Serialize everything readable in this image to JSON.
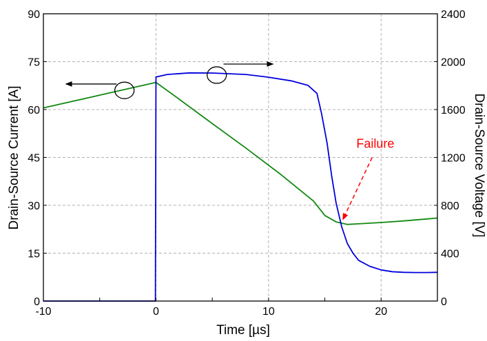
{
  "chart_data": {
    "type": "line",
    "xlabel": "Time [µs]",
    "ylabel_left": "Drain-Source Current [A]",
    "ylabel_right": "Drain-Source Voltage [V]",
    "xlim": [
      -10,
      25
    ],
    "ylim_left": [
      0,
      90
    ],
    "ylim_right": [
      0,
      2400
    ],
    "x_ticks": [
      -10,
      0,
      10,
      20
    ],
    "y_ticks_left": [
      0,
      15,
      30,
      45,
      60,
      75,
      90
    ],
    "y_ticks_right": [
      0,
      400,
      800,
      1200,
      1600,
      2000,
      2400
    ],
    "grid": true,
    "annotation": {
      "text": "Failure",
      "color": "#ff0000",
      "text_at": [
        17.8,
        48
      ],
      "arrow_from": [
        19.2,
        45
      ],
      "arrow_to": [
        16.6,
        25.5
      ]
    },
    "series": [
      {
        "axis": "left",
        "color": "#118811",
        "x": [
          -10,
          -5,
          0,
          2,
          5,
          8,
          11,
          14,
          15,
          16,
          17,
          18,
          20,
          22,
          24,
          25
        ],
        "y": [
          60.5,
          64.5,
          68.5,
          63.4,
          55.6,
          47.9,
          39.9,
          31.3,
          26.8,
          24.8,
          24.0,
          24.2,
          24.6,
          25.1,
          25.7,
          26.0
        ]
      },
      {
        "axis": "right",
        "color": "#0000dd",
        "x": [
          -10,
          -0.05,
          0,
          0.05,
          1,
          3,
          5,
          8,
          10,
          12,
          13.5,
          14.3,
          14.7,
          15.2,
          15.6,
          16,
          16.5,
          17,
          17.5,
          18,
          19,
          20,
          21,
          22,
          23,
          24,
          25
        ],
        "y": [
          0,
          0,
          1873,
          1873,
          1893,
          1906,
          1905,
          1893,
          1870,
          1840,
          1802,
          1735,
          1570,
          1320,
          1050,
          820,
          620,
          480,
          400,
          340,
          290,
          260,
          245,
          240,
          238,
          238,
          240
        ]
      }
    ],
    "direction_markers": [
      {
        "points_to": "left",
        "circle_at": [
          -2.8,
          66
        ],
        "arrow_from": [
          -3.5,
          68
        ],
        "arrow_to": [
          -8.0,
          68
        ]
      },
      {
        "points_to": "right",
        "circle_at": [
          5.4,
          1888
        ],
        "arrow_from": [
          6.0,
          1980
        ],
        "arrow_to": [
          10.4,
          1980
        ]
      }
    ]
  }
}
